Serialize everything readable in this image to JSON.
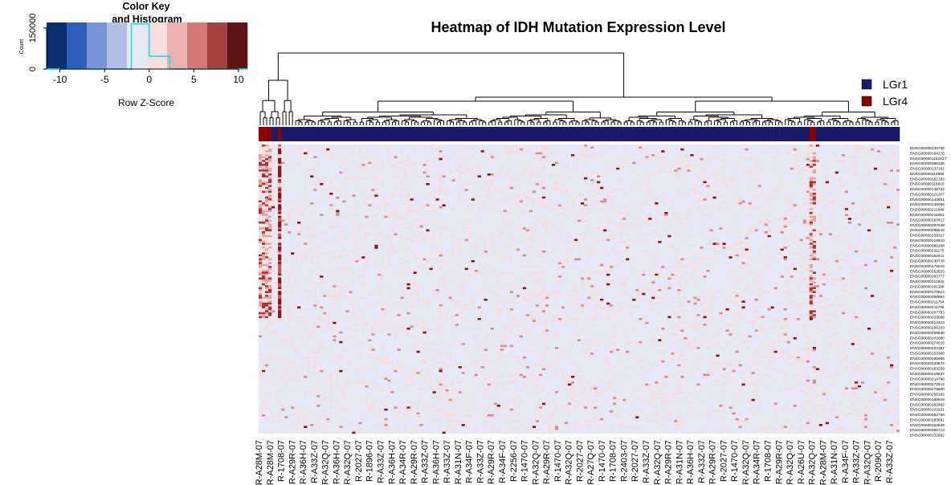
{
  "chart_data": {
    "type": "heatmap",
    "title": "Heatmap of IDH Mutation Expression Level",
    "color_key": {
      "title_line1": "Color Key",
      "title_line2": "and Histogram",
      "count_label": "Count",
      "x_label": "Row Z-Score",
      "x_ticks": [
        "-10",
        "-5",
        "0",
        "5",
        "10"
      ],
      "x_tick_values": [
        -10,
        -5,
        0,
        5,
        10
      ],
      "x_range": [
        -11.5,
        11
      ],
      "y_ticks": [
        "0",
        "150000"
      ],
      "y_tick_values": [
        0,
        150000
      ],
      "y_max": 170000,
      "bin_colors": [
        "#0b2f6e",
        "#2d5fb8",
        "#7a94d8",
        "#b4bfe8",
        "#e6e8f4",
        "#f6dede",
        "#ebb0b0",
        "#d27878",
        "#a54040",
        "#5e1414"
      ],
      "histogram": {
        "edges": [
          -2,
          0,
          2.3
        ],
        "counts": [
          165000,
          47000
        ]
      }
    },
    "legend": {
      "position": "top-right",
      "entries": [
        {
          "label": "LGr1",
          "color": "#1b1b6b"
        },
        {
          "label": "LGr4",
          "color": "#8b0000"
        }
      ]
    },
    "column_groups": [
      "LGr4",
      "LGr4",
      "LGr4",
      "LGr4",
      "LGr1",
      "LGr1",
      "LGr4",
      "LGr1",
      "LGr1",
      "LGr1",
      "LGr1",
      "LGr1",
      "LGr1",
      "LGr1",
      "LGr1",
      "LGr1",
      "LGr1",
      "LGr1",
      "LGr1",
      "LGr1",
      "LGr1",
      "LGr1",
      "LGr1",
      "LGr1",
      "LGr1",
      "LGr1",
      "LGr1",
      "LGr1",
      "LGr1",
      "LGr1",
      "LGr1",
      "LGr1",
      "LGr1",
      "LGr1",
      "LGr1",
      "LGr1",
      "LGr1",
      "LGr1",
      "LGr1",
      "LGr1",
      "LGr1",
      "LGr1",
      "LGr1",
      "LGr1",
      "LGr1",
      "LGr1",
      "LGr1",
      "LGr1",
      "LGr1",
      "LGr1",
      "LGr1",
      "LGr1",
      "LGr1",
      "LGr1",
      "LGr1",
      "LGr1",
      "LGr1",
      "LGr1",
      "LGr1",
      "LGr1",
      "LGr1",
      "LGr1",
      "LGr1",
      "LGr1",
      "LGr1",
      "LGr1",
      "LGr1",
      "LGr1",
      "LGr1",
      "LGr1",
      "LGr1",
      "LGr1",
      "LGr1",
      "LGr1",
      "LGr1",
      "LGr1",
      "LGr1",
      "LGr1",
      "LGr1",
      "LGr1",
      "LGr1",
      "LGr1",
      "LGr1",
      "LGr1",
      "LGr1",
      "LGr1",
      "LGr1",
      "LGr1",
      "LGr1",
      "LGr1",
      "LGr1",
      "LGr1",
      "LGr1",
      "LGr1",
      "LGr1",
      "LGr1",
      "LGr1",
      "LGr1",
      "LGr1",
      "LGr1",
      "LGr1",
      "LGr1",
      "LGr1",
      "LGr1",
      "LGr1",
      "LGr1",
      "LGr1",
      "LGr1",
      "LGr1",
      "LGr1",
      "LGr1",
      "LGr1",
      "LGr1",
      "LGr1",
      "LGr1",
      "LGr1",
      "LGr1",
      "LGr1",
      "LGr1",
      "LGr1",
      "LGr1",
      "LGr1",
      "LGr1",
      "LGr1",
      "LGr1",
      "LGr1",
      "LGr1",
      "LGr1",
      "LGr1",
      "LGr1",
      "LGr1",
      "LGr1",
      "LGr1",
      "LGr1",
      "LGr1",
      "LGr1",
      "LGr1",
      "LGr1",
      "LGr1",
      "LGr1",
      "LGr1",
      "LGr1",
      "LGr1",
      "LGr1",
      "LGr1",
      "LGr1",
      "LGr1",
      "LGr1",
      "LGr1",
      "LGr1",
      "LGr1",
      "LGr1",
      "LGr1",
      "LGr1",
      "LGr1",
      "LGr1",
      "LGr1",
      "LGr1",
      "LGr1",
      "LGr1",
      "LGr1",
      "LGr1",
      "LGr1",
      "LGr1",
      "LGr1",
      "LGr1",
      "LGr1",
      "LGr1",
      "LGr1",
      "LGr1",
      "LGr1",
      "LGr4",
      "LGr4",
      "LGr1",
      "LGr1",
      "LGr1",
      "LGr1",
      "LGr1",
      "LGr1",
      "LGr1",
      "LGr1",
      "LGr1",
      "LGr1",
      "LGr1",
      "LGr1",
      "LGr1",
      "LGr1",
      "LGr1",
      "LGr1",
      "LGr1",
      "LGr1",
      "LGr1",
      "LGr1",
      "LGr1",
      "LGr1",
      "LGr1",
      "LGr1",
      "LGr1",
      "LGr1"
    ],
    "column_labels": [
      "R-A28M-07",
      "R-A28M-07",
      "R-1708-07",
      "R-A29R-07",
      "R-A36H-07",
      "R-A33Z-07",
      "R-A32Q-07",
      "R-A36H-07",
      "R-A32Q-07",
      "R-2027-07",
      "R-1896-07",
      "R-A33Z-07",
      "R-A36H-07",
      "R-A34R-07",
      "R-A29R-07",
      "R-A33Z-07",
      "R-A36H-07",
      "R-A33Z-07",
      "R-A31N-07",
      "R-A34F-07",
      "R-A33Z-07",
      "R-A29R-07",
      "R-A34F-07",
      "R-2256-07",
      "R-1470-07",
      "R-A32Q-07",
      "R-A29R-07",
      "R-1470-07",
      "R-A32Q-07",
      "R-2027-07",
      "R-A27Q-07",
      "R-1470-07",
      "R-1708-07",
      "R-2403-07",
      "R-2027-07",
      "R-A33Z-07",
      "R-A32Q-07",
      "R-A29R-07",
      "R-A31N-07",
      "R-A36H-07",
      "R-A33Z-07",
      "R-A29R-07",
      "R-2027-07",
      "R-1470-07",
      "R-A32Q-07",
      "R-A34R-07",
      "R-1708-07",
      "R-A29R-07",
      "R-A32Q-07",
      "R-A26U-07",
      "R-A32Q-07",
      "R-A28M-07",
      "R-A31N-07",
      "R-A34F-07",
      "R-A33Z-07",
      "R-A32Q-07",
      "R-2090-07",
      "R-A33Z-07"
    ],
    "row_labels": [
      "ENSG00000145730",
      "ENSG00000164170",
      "ENSG00000115161T",
      "ENSG00000066336",
      "ENSG00000137162",
      "ENSG00000115956",
      "ENSG00000162183",
      "ENSG00000116816",
      "ENSG00000136722",
      "ENSG00000121207",
      "ENSG00000143851",
      "ENSG00000136056",
      "ENSG00000211648",
      "ENSG00000211651",
      "ENSG00000163417",
      "ENSG00000287639",
      "ENSG00000286515",
      "ENSG00000153317",
      "ENSG00000216810",
      "ENSG00000086288",
      "ENSG00000231175",
      "ENSG00000152611",
      "ENSG00000230778",
      "ENSG00000176010",
      "ENSG00000253525",
      "ENSG00000283777",
      "ENSG00000211942",
      "ENSG00000181109",
      "ENSG00000179824",
      "ENSG00000266864",
      "ENSG00000211794",
      "ENSG00000211796",
      "ENSG00000207793",
      "ENSG00000229098",
      "ENSG00000214313",
      "ENSG00000260103",
      "ENSG00000266630",
      "ENSG00000241680",
      "ENSG00000274015",
      "ENSG00000224387",
      "ENSG00000253300",
      "ENSG00000286656",
      "ENSG00000229676",
      "ENSG00000163209",
      "ENSG00000219837",
      "ENSG00000214796",
      "ENSG00000272512",
      "ENSG00000278600",
      "ENSG00000258182",
      "ENSG00000188818",
      "ENSG00000162992",
      "ENSG00000102921",
      "ENSG00000092758",
      "ENSG00000183691",
      "ENSG00000253649",
      "ENSG00000095713",
      "ENSG00000132692"
    ],
    "value_scale": "row z-score",
    "grid": false
  }
}
